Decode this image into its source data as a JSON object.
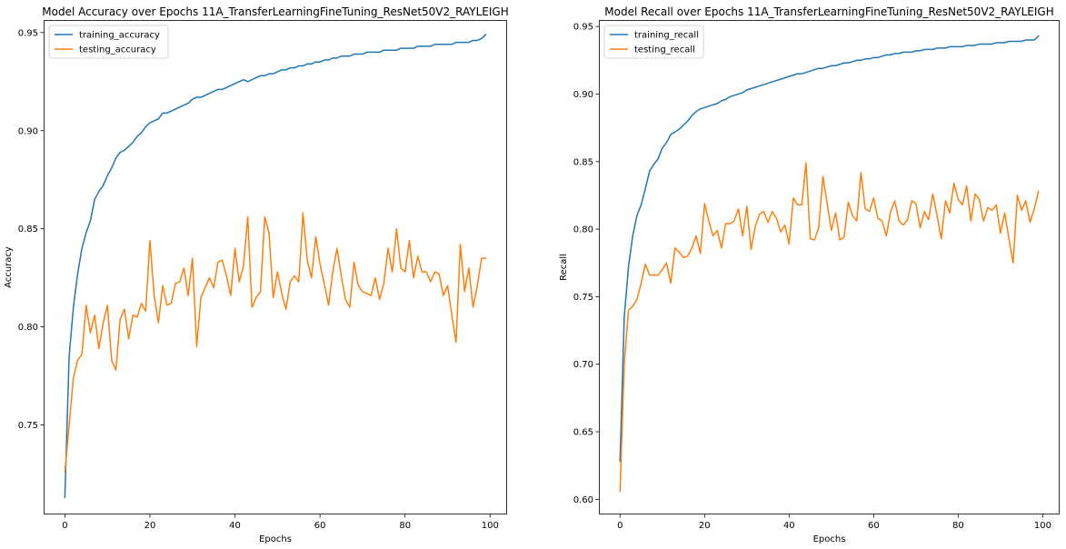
{
  "chart_data": [
    {
      "type": "line",
      "title": "Model Accuracy over Epochs 11A_TransferLearningFineTuning_ResNet50V2_RAYLEIGH",
      "xlabel": "Epochs",
      "ylabel": "Accuracy",
      "xlim": [
        -5,
        104
      ],
      "ylim": [
        0.7044,
        0.9564
      ],
      "xticks": [
        0,
        20,
        40,
        60,
        80,
        100
      ],
      "yticks": [
        0.75,
        0.8,
        0.85,
        0.9,
        0.95
      ],
      "ytick_labels": [
        "0.75",
        "0.80",
        "0.85",
        "0.90",
        "0.95"
      ],
      "legend": "top-left",
      "series": [
        {
          "name": "training_accuracy",
          "color": "#1f77b4",
          "values": [
            0.713,
            0.785,
            0.81,
            0.827,
            0.84,
            0.848,
            0.854,
            0.865,
            0.869,
            0.872,
            0.877,
            0.881,
            0.886,
            0.889,
            0.89,
            0.892,
            0.894,
            0.897,
            0.899,
            0.902,
            0.904,
            0.905,
            0.906,
            0.909,
            0.909,
            0.91,
            0.911,
            0.912,
            0.913,
            0.914,
            0.916,
            0.917,
            0.917,
            0.918,
            0.919,
            0.92,
            0.921,
            0.921,
            0.922,
            0.923,
            0.924,
            0.925,
            0.926,
            0.925,
            0.926,
            0.927,
            0.928,
            0.928,
            0.929,
            0.929,
            0.93,
            0.931,
            0.931,
            0.932,
            0.932,
            0.933,
            0.933,
            0.934,
            0.934,
            0.935,
            0.935,
            0.936,
            0.936,
            0.937,
            0.937,
            0.938,
            0.938,
            0.938,
            0.939,
            0.939,
            0.939,
            0.94,
            0.94,
            0.94,
            0.94,
            0.941,
            0.941,
            0.941,
            0.941,
            0.942,
            0.942,
            0.942,
            0.942,
            0.943,
            0.943,
            0.943,
            0.943,
            0.944,
            0.944,
            0.944,
            0.944,
            0.944,
            0.945,
            0.945,
            0.945,
            0.945,
            0.946,
            0.946,
            0.947,
            0.949
          ]
        },
        {
          "name": "testing_accuracy",
          "color": "#ff7f0e",
          "values": [
            0.726,
            0.75,
            0.774,
            0.783,
            0.786,
            0.811,
            0.797,
            0.806,
            0.789,
            0.802,
            0.811,
            0.783,
            0.778,
            0.804,
            0.809,
            0.794,
            0.806,
            0.805,
            0.812,
            0.808,
            0.844,
            0.816,
            0.802,
            0.821,
            0.811,
            0.812,
            0.822,
            0.823,
            0.83,
            0.816,
            0.835,
            0.79,
            0.815,
            0.82,
            0.825,
            0.82,
            0.833,
            0.834,
            0.826,
            0.816,
            0.84,
            0.823,
            0.831,
            0.856,
            0.81,
            0.815,
            0.818,
            0.856,
            0.848,
            0.815,
            0.828,
            0.817,
            0.809,
            0.823,
            0.826,
            0.823,
            0.858,
            0.834,
            0.825,
            0.846,
            0.832,
            0.822,
            0.811,
            0.828,
            0.84,
            0.826,
            0.814,
            0.81,
            0.833,
            0.821,
            0.818,
            0.817,
            0.816,
            0.825,
            0.814,
            0.822,
            0.84,
            0.828,
            0.85,
            0.83,
            0.828,
            0.844,
            0.825,
            0.836,
            0.828,
            0.828,
            0.823,
            0.828,
            0.827,
            0.816,
            0.821,
            0.806,
            0.792,
            0.842,
            0.818,
            0.83,
            0.81,
            0.821,
            0.835,
            0.835
          ]
        }
      ]
    },
    {
      "type": "line",
      "title": "Model Recall over Epochs 11A_TransferLearningFineTuning_ResNet50V2_RAYLEIGH",
      "xlabel": "Epochs",
      "ylabel": "Recall",
      "xlim": [
        -5,
        104
      ],
      "ylim": [
        0.5888,
        0.9548
      ],
      "xticks": [
        0,
        20,
        40,
        60,
        80,
        100
      ],
      "yticks": [
        0.6,
        0.65,
        0.7,
        0.75,
        0.8,
        0.85,
        0.9,
        0.95
      ],
      "ytick_labels": [
        "0.60",
        "0.65",
        "0.70",
        "0.75",
        "0.80",
        "0.85",
        "0.90",
        "0.95"
      ],
      "legend": "top-left",
      "series": [
        {
          "name": "training_recall",
          "color": "#1f77b4",
          "values": [
            0.628,
            0.735,
            0.772,
            0.795,
            0.81,
            0.818,
            0.83,
            0.843,
            0.848,
            0.852,
            0.86,
            0.864,
            0.87,
            0.872,
            0.874,
            0.877,
            0.88,
            0.884,
            0.887,
            0.889,
            0.89,
            0.891,
            0.892,
            0.893,
            0.895,
            0.896,
            0.898,
            0.899,
            0.9,
            0.901,
            0.903,
            0.904,
            0.905,
            0.906,
            0.907,
            0.908,
            0.909,
            0.91,
            0.911,
            0.912,
            0.913,
            0.914,
            0.915,
            0.915,
            0.916,
            0.917,
            0.918,
            0.919,
            0.919,
            0.92,
            0.921,
            0.921,
            0.922,
            0.923,
            0.923,
            0.924,
            0.925,
            0.925,
            0.926,
            0.926,
            0.927,
            0.927,
            0.928,
            0.929,
            0.929,
            0.93,
            0.93,
            0.931,
            0.931,
            0.931,
            0.932,
            0.932,
            0.933,
            0.933,
            0.933,
            0.934,
            0.934,
            0.934,
            0.935,
            0.935,
            0.935,
            0.935,
            0.936,
            0.936,
            0.936,
            0.937,
            0.937,
            0.937,
            0.937,
            0.938,
            0.938,
            0.938,
            0.939,
            0.939,
            0.939,
            0.939,
            0.94,
            0.94,
            0.94,
            0.943
          ]
        },
        {
          "name": "testing_recall",
          "color": "#ff7f0e",
          "values": [
            0.606,
            0.7,
            0.74,
            0.743,
            0.748,
            0.76,
            0.774,
            0.766,
            0.766,
            0.766,
            0.77,
            0.775,
            0.76,
            0.786,
            0.783,
            0.779,
            0.78,
            0.786,
            0.795,
            0.782,
            0.819,
            0.806,
            0.795,
            0.799,
            0.786,
            0.804,
            0.804,
            0.806,
            0.815,
            0.795,
            0.817,
            0.785,
            0.802,
            0.811,
            0.813,
            0.805,
            0.813,
            0.808,
            0.798,
            0.803,
            0.789,
            0.823,
            0.818,
            0.818,
            0.849,
            0.793,
            0.792,
            0.801,
            0.839,
            0.819,
            0.799,
            0.812,
            0.792,
            0.794,
            0.82,
            0.81,
            0.806,
            0.842,
            0.815,
            0.813,
            0.823,
            0.808,
            0.806,
            0.795,
            0.813,
            0.821,
            0.806,
            0.803,
            0.807,
            0.821,
            0.819,
            0.801,
            0.813,
            0.807,
            0.826,
            0.81,
            0.793,
            0.821,
            0.812,
            0.834,
            0.822,
            0.818,
            0.832,
            0.806,
            0.826,
            0.822,
            0.806,
            0.816,
            0.814,
            0.818,
            0.797,
            0.812,
            0.793,
            0.775,
            0.825,
            0.814,
            0.821,
            0.805,
            0.815,
            0.828
          ]
        }
      ]
    }
  ]
}
